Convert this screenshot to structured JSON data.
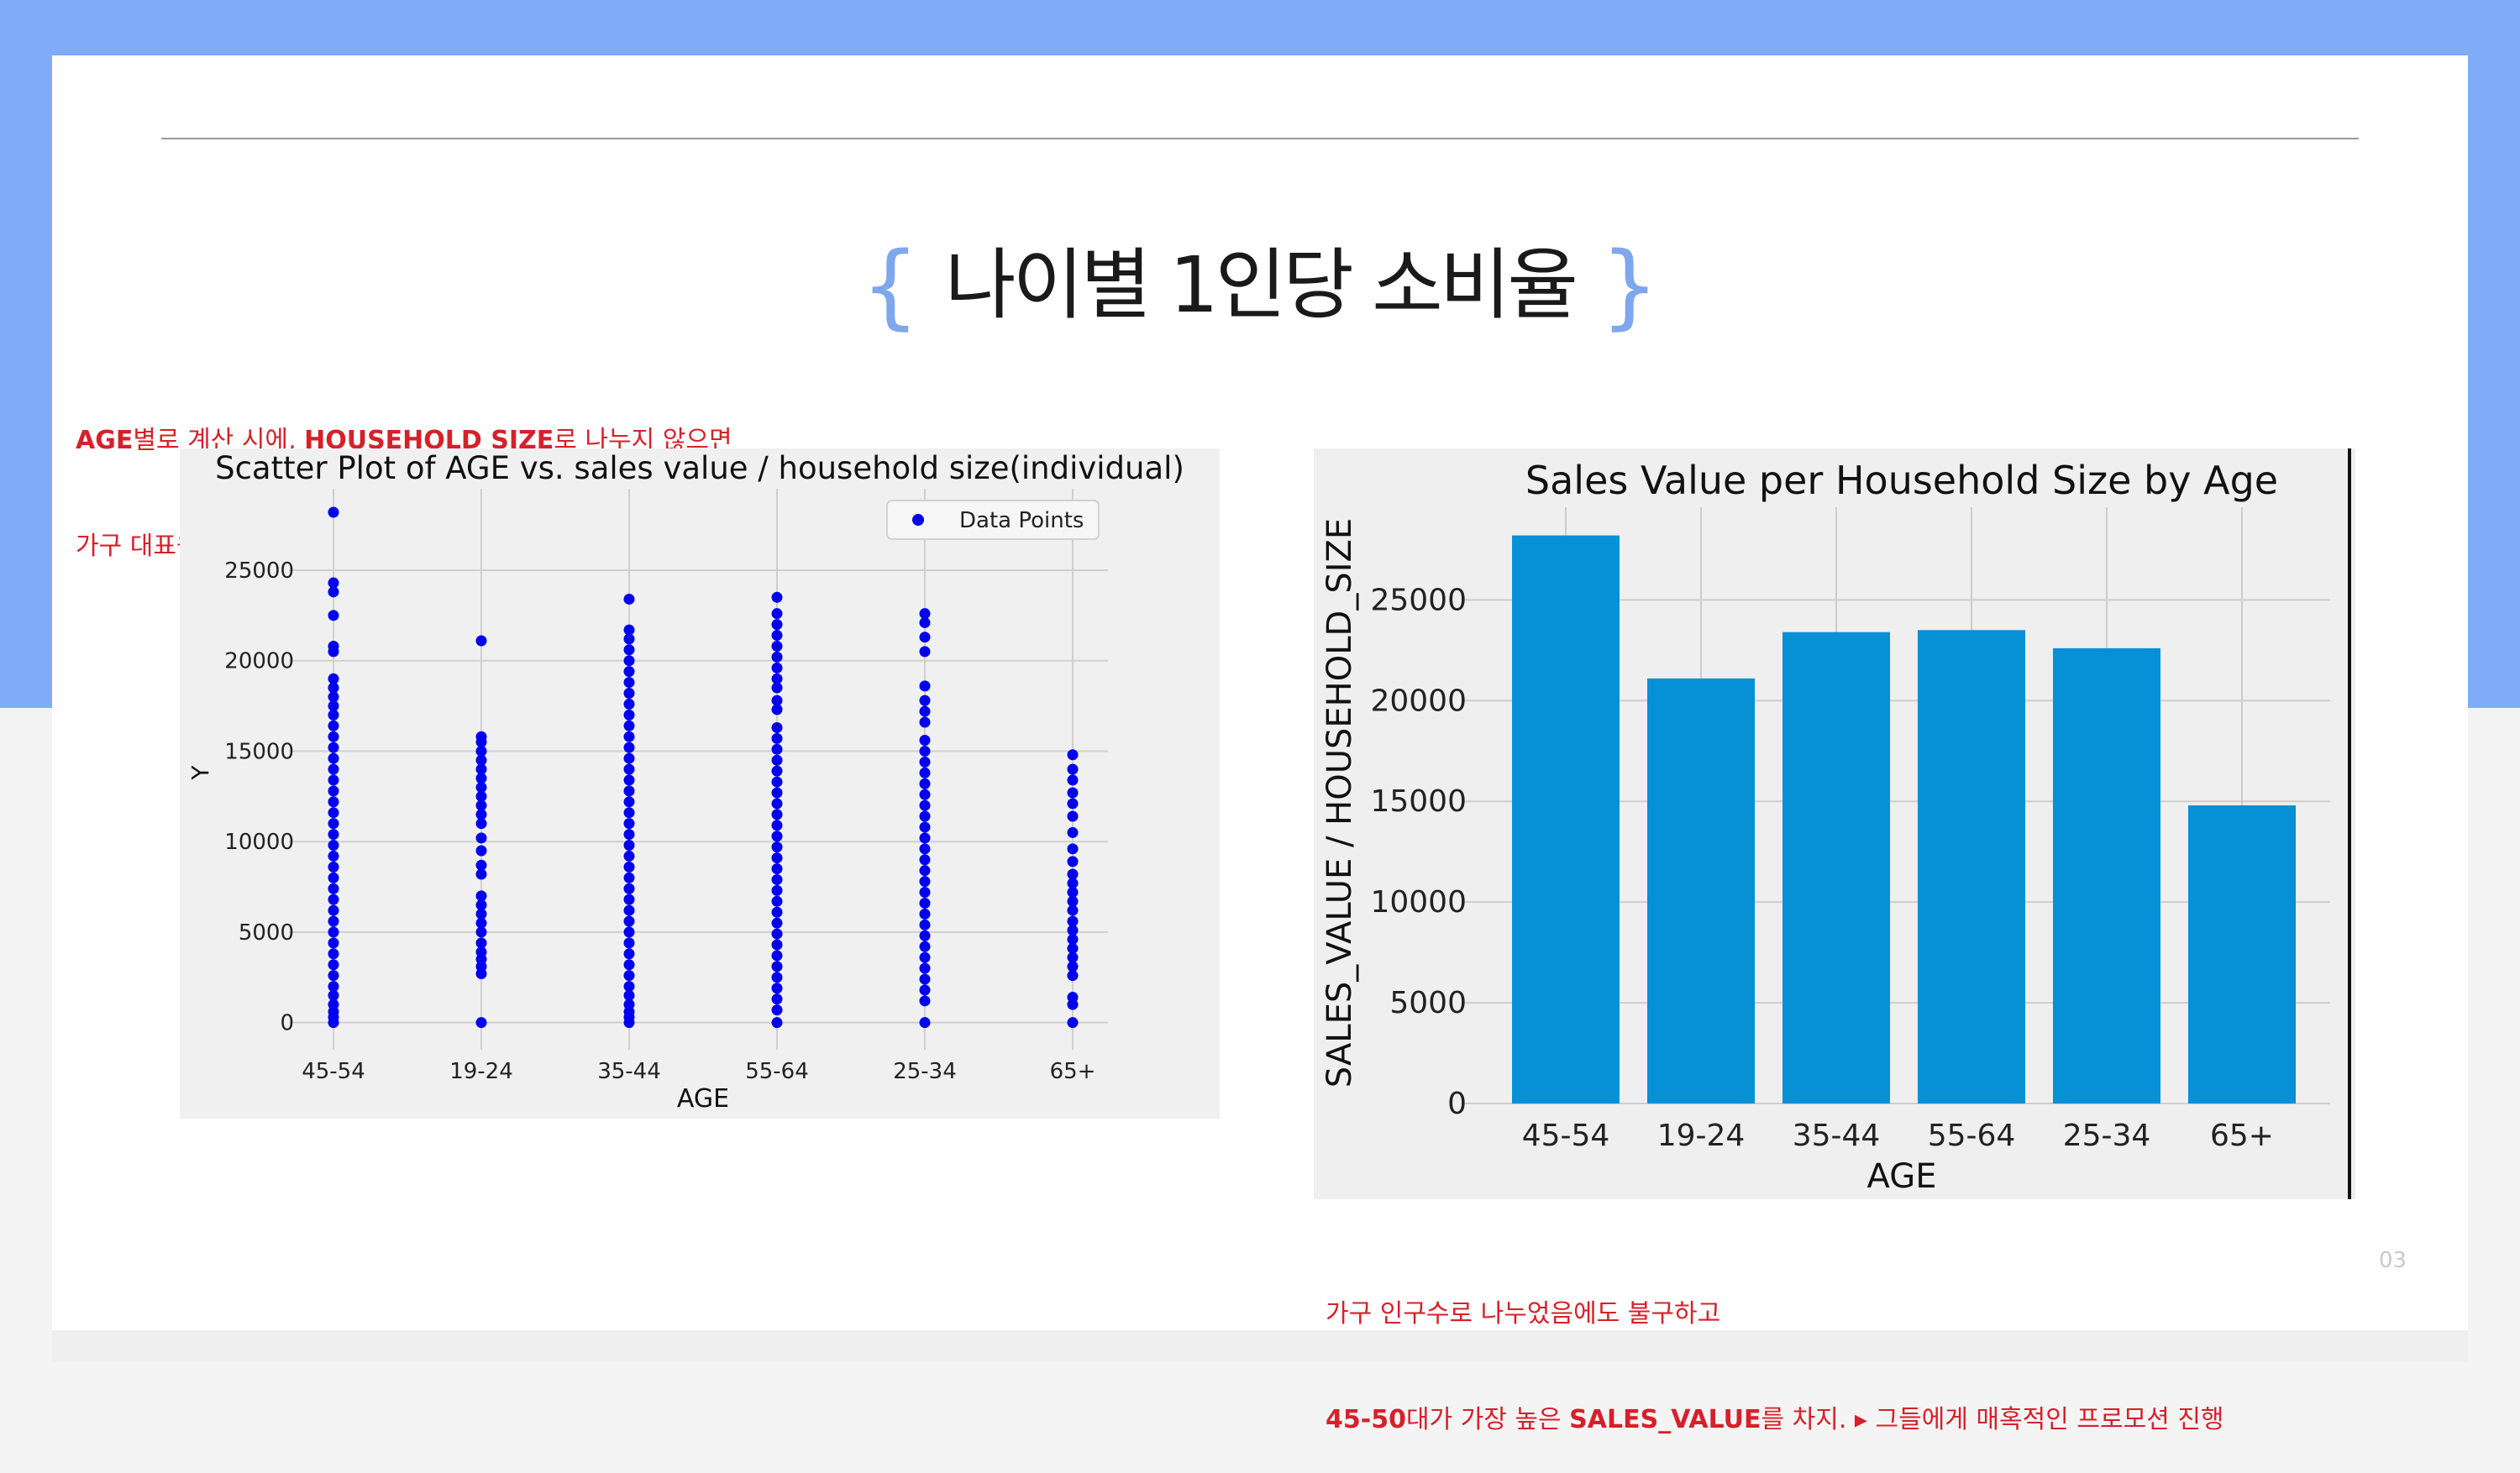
{
  "slide": {
    "title": "나이별 1인당 소비율",
    "page_number": "03",
    "note_top": {
      "line1": [
        {
          "text": "AGE",
          "bold": true
        },
        {
          "text": "별로 계산 시에, ",
          "bold": false
        },
        {
          "text": "HOUSEHOLD SIZE",
          "bold": true
        },
        {
          "text": "로 나누지 않으면",
          "bold": false
        }
      ],
      "line2": [
        {
          "text": "가구 대표원이 한번에 결제하여 카운트되는 오류를 범할 수 있음.",
          "bold": false
        }
      ]
    },
    "note_bottom": {
      "line1": [
        {
          "text": "가구 인구수로 나누었음에도 불구하고",
          "bold": false
        }
      ],
      "line2": [
        {
          "text": "45-50",
          "bold": true
        },
        {
          "text": "대가 가장 높은 ",
          "bold": false
        },
        {
          "text": "SALES_VALUE",
          "bold": true
        },
        {
          "text": "를 차지. ▸ 그들에게 매혹적인 프로모션 진행",
          "bold": false
        }
      ]
    }
  },
  "chart_data": [
    {
      "type": "scatter",
      "title": "Scatter Plot of AGE vs. sales value / household size(individual)",
      "xlabel": "AGE",
      "ylabel": "Y",
      "categories": [
        "45-54",
        "19-24",
        "35-44",
        "55-64",
        "25-34",
        "65+"
      ],
      "yticks": [
        0,
        5000,
        10000,
        15000,
        20000,
        25000
      ],
      "ylim": [
        -1500,
        29500
      ],
      "grid": true,
      "legend": {
        "label": "Data Points",
        "placement": "top-right"
      },
      "series": [
        {
          "name": "Data Points",
          "color": "#0000ee",
          "points": [
            {
              "x": "45-54",
              "y": [
                0,
                300,
                600,
                1000,
                1500,
                2000,
                2600,
                3200,
                3800,
                4400,
                5000,
                5600,
                6200,
                6800,
                7400,
                8000,
                8600,
                9200,
                9800,
                10400,
                11000,
                11600,
                12200,
                12800,
                13400,
                14000,
                14600,
                15200,
                15800,
                16400,
                17000,
                17500,
                18000,
                18500,
                19000,
                20500,
                20800,
                22500,
                23800,
                24300,
                28200
              ]
            },
            {
              "x": "19-24",
              "y": [
                0,
                2700,
                3100,
                3500,
                3900,
                4400,
                5000,
                5500,
                6000,
                6500,
                7000,
                8200,
                8700,
                9500,
                10200,
                11000,
                11500,
                12000,
                12500,
                13000,
                13500,
                14000,
                14500,
                15000,
                15500,
                15800,
                21100
              ]
            },
            {
              "x": "35-44",
              "y": [
                0,
                300,
                600,
                1000,
                1500,
                2000,
                2600,
                3200,
                3800,
                4400,
                5000,
                5600,
                6200,
                6800,
                7400,
                8000,
                8600,
                9200,
                9800,
                10400,
                11000,
                11600,
                12200,
                12800,
                13400,
                14000,
                14600,
                15200,
                15800,
                16400,
                17000,
                17600,
                18200,
                18800,
                19400,
                20000,
                20600,
                21200,
                21700,
                23400
              ]
            },
            {
              "x": "55-64",
              "y": [
                0,
                700,
                1300,
                1900,
                2500,
                3100,
                3700,
                4300,
                4900,
                5500,
                6100,
                6700,
                7300,
                7900,
                8500,
                9100,
                9700,
                10300,
                10900,
                11500,
                12100,
                12700,
                13300,
                13900,
                14500,
                15100,
                15700,
                16300,
                17300,
                17800,
                18500,
                19000,
                19600,
                20200,
                20800,
                21400,
                22000,
                22600,
                23500
              ]
            },
            {
              "x": "25-34",
              "y": [
                0,
                1200,
                1800,
                2400,
                3000,
                3600,
                4200,
                4800,
                5400,
                6000,
                6600,
                7200,
                7800,
                8400,
                9000,
                9600,
                10200,
                10800,
                11400,
                12000,
                12600,
                13200,
                13800,
                14400,
                15000,
                15600,
                16600,
                17200,
                17800,
                18600,
                20500,
                21300,
                22100,
                22600
              ]
            },
            {
              "x": "65+",
              "y": [
                0,
                1000,
                1400,
                2600,
                3100,
                3600,
                4100,
                4600,
                5100,
                5600,
                6200,
                6700,
                7200,
                7700,
                8200,
                8900,
                9600,
                10500,
                11400,
                12100,
                12700,
                13400,
                14000,
                14800
              ]
            }
          ]
        }
      ]
    },
    {
      "type": "bar",
      "title": "Sales Value per Household Size by Age",
      "xlabel": "AGE",
      "ylabel": "SALES_VALUE / HOUSEHOLD_SIZE",
      "categories": [
        "45-54",
        "19-24",
        "35-44",
        "55-64",
        "25-34",
        "65+"
      ],
      "values": [
        28200,
        21100,
        23400,
        23500,
        22600,
        14800
      ],
      "yticks": [
        0,
        5000,
        10000,
        15000,
        20000,
        25000
      ],
      "ylim": [
        0,
        29600
      ],
      "grid": true,
      "bar_color": "#0690d6"
    }
  ]
}
